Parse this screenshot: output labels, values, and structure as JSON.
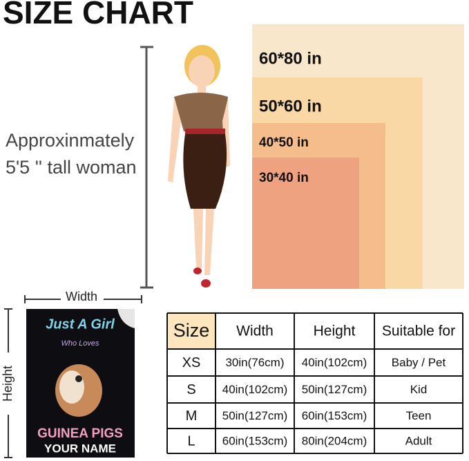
{
  "title": "SIZE CHART",
  "woman_label": [
    "Approxinmately",
    "5'5 '' tall woman"
  ],
  "sizes": [
    "60*80 in",
    "50*60 in",
    "40*50 in",
    "30*40 in"
  ],
  "blanket": {
    "width_label": "Width",
    "height_label": "Height",
    "lines": [
      "Just A Girl",
      "Who Loves",
      "GUINEA PIGS",
      "YOUR NAME"
    ]
  },
  "table": {
    "header": [
      "Size",
      "Width",
      "Height",
      "Suitable for"
    ],
    "rows": [
      [
        "XS",
        "30in(76cm)",
        "40in(102cm)",
        "Baby / Pet"
      ],
      [
        "S",
        "40in(102cm)",
        "50in(127cm)",
        "Kid"
      ],
      [
        "M",
        "50in(127cm)",
        "60in(153cm)",
        "Teen"
      ],
      [
        "L",
        "60in(153cm)",
        "80in(204cm)",
        "Adult"
      ]
    ]
  }
}
